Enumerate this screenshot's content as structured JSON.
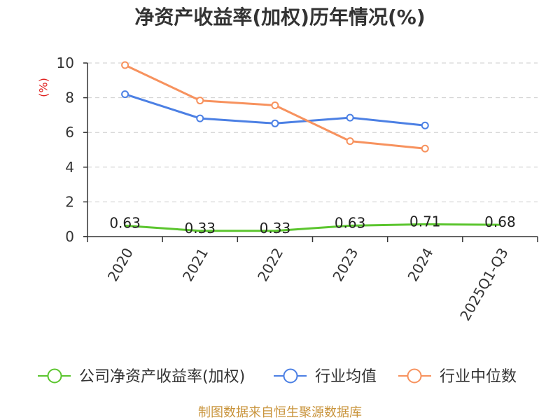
{
  "chart_data": {
    "type": "line",
    "title": "净资产收益率(加权)历年情况(%)",
    "xlabel": "",
    "ylabel": "(%)",
    "categories": [
      "2020",
      "2021",
      "2022",
      "2023",
      "2024",
      "2025Q1-Q3"
    ],
    "ylim": [
      0,
      10
    ],
    "yticks": [
      0,
      2,
      4,
      6,
      8,
      10
    ],
    "grid": true,
    "series": [
      {
        "name": "公司净资产收益率(加权)",
        "values": [
          0.63,
          0.33,
          0.33,
          0.63,
          0.71,
          0.68
        ],
        "color": "#5bc52e",
        "markers": false,
        "data_labels": true
      },
      {
        "name": "行业均值",
        "values": [
          8.2,
          6.81,
          6.52,
          6.85,
          6.4,
          null
        ],
        "color": "#4c80e4",
        "markers": true,
        "data_labels": false
      },
      {
        "name": "行业中位数",
        "values": [
          9.88,
          7.84,
          7.56,
          5.5,
          5.07,
          null
        ],
        "color": "#f7925e",
        "markers": true,
        "data_labels": false
      }
    ]
  },
  "footer": {
    "source": "制图数据来自恒生聚源数据库"
  }
}
